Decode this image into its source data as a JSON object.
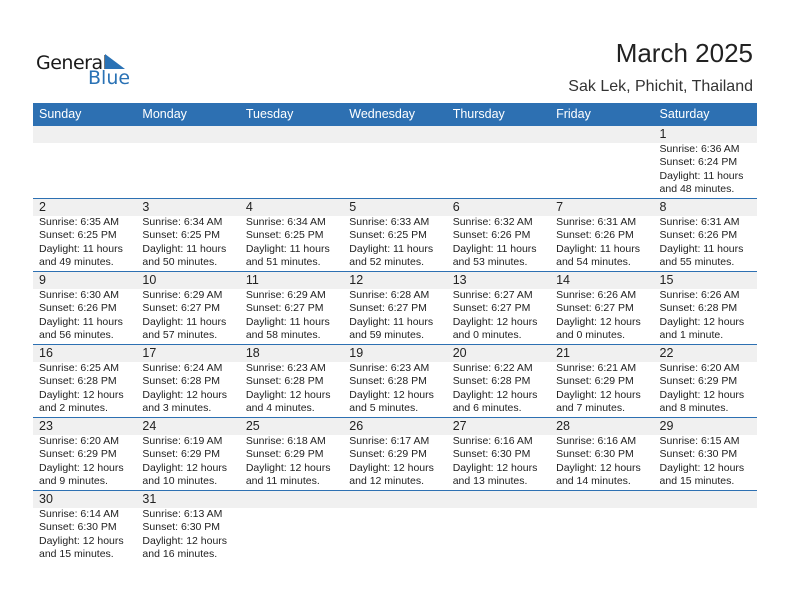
{
  "logo": {
    "line1": "General",
    "line2": "Blue"
  },
  "title": "March 2025",
  "location": "Sak Lek, Phichit, Thailand",
  "colors": {
    "accent": "#2d70b2",
    "band": "#f0f0f0"
  },
  "weekdays": [
    "Sunday",
    "Monday",
    "Tuesday",
    "Wednesday",
    "Thursday",
    "Friday",
    "Saturday"
  ],
  "weeks": [
    [
      null,
      null,
      null,
      null,
      null,
      null,
      {
        "day": "1",
        "sunrise": "Sunrise: 6:36 AM",
        "sunset": "Sunset: 6:24 PM",
        "daylight": "Daylight: 11 hours",
        "minutes": "and 48 minutes."
      }
    ],
    [
      {
        "day": "2",
        "sunrise": "Sunrise: 6:35 AM",
        "sunset": "Sunset: 6:25 PM",
        "daylight": "Daylight: 11 hours",
        "minutes": "and 49 minutes."
      },
      {
        "day": "3",
        "sunrise": "Sunrise: 6:34 AM",
        "sunset": "Sunset: 6:25 PM",
        "daylight": "Daylight: 11 hours",
        "minutes": "and 50 minutes."
      },
      {
        "day": "4",
        "sunrise": "Sunrise: 6:34 AM",
        "sunset": "Sunset: 6:25 PM",
        "daylight": "Daylight: 11 hours",
        "minutes": "and 51 minutes."
      },
      {
        "day": "5",
        "sunrise": "Sunrise: 6:33 AM",
        "sunset": "Sunset: 6:25 PM",
        "daylight": "Daylight: 11 hours",
        "minutes": "and 52 minutes."
      },
      {
        "day": "6",
        "sunrise": "Sunrise: 6:32 AM",
        "sunset": "Sunset: 6:26 PM",
        "daylight": "Daylight: 11 hours",
        "minutes": "and 53 minutes."
      },
      {
        "day": "7",
        "sunrise": "Sunrise: 6:31 AM",
        "sunset": "Sunset: 6:26 PM",
        "daylight": "Daylight: 11 hours",
        "minutes": "and 54 minutes."
      },
      {
        "day": "8",
        "sunrise": "Sunrise: 6:31 AM",
        "sunset": "Sunset: 6:26 PM",
        "daylight": "Daylight: 11 hours",
        "minutes": "and 55 minutes."
      }
    ],
    [
      {
        "day": "9",
        "sunrise": "Sunrise: 6:30 AM",
        "sunset": "Sunset: 6:26 PM",
        "daylight": "Daylight: 11 hours",
        "minutes": "and 56 minutes."
      },
      {
        "day": "10",
        "sunrise": "Sunrise: 6:29 AM",
        "sunset": "Sunset: 6:27 PM",
        "daylight": "Daylight: 11 hours",
        "minutes": "and 57 minutes."
      },
      {
        "day": "11",
        "sunrise": "Sunrise: 6:29 AM",
        "sunset": "Sunset: 6:27 PM",
        "daylight": "Daylight: 11 hours",
        "minutes": "and 58 minutes."
      },
      {
        "day": "12",
        "sunrise": "Sunrise: 6:28 AM",
        "sunset": "Sunset: 6:27 PM",
        "daylight": "Daylight: 11 hours",
        "minutes": "and 59 minutes."
      },
      {
        "day": "13",
        "sunrise": "Sunrise: 6:27 AM",
        "sunset": "Sunset: 6:27 PM",
        "daylight": "Daylight: 12 hours",
        "minutes": "and 0 minutes."
      },
      {
        "day": "14",
        "sunrise": "Sunrise: 6:26 AM",
        "sunset": "Sunset: 6:27 PM",
        "daylight": "Daylight: 12 hours",
        "minutes": "and 0 minutes."
      },
      {
        "day": "15",
        "sunrise": "Sunrise: 6:26 AM",
        "sunset": "Sunset: 6:28 PM",
        "daylight": "Daylight: 12 hours",
        "minutes": "and 1 minute."
      }
    ],
    [
      {
        "day": "16",
        "sunrise": "Sunrise: 6:25 AM",
        "sunset": "Sunset: 6:28 PM",
        "daylight": "Daylight: 12 hours",
        "minutes": "and 2 minutes."
      },
      {
        "day": "17",
        "sunrise": "Sunrise: 6:24 AM",
        "sunset": "Sunset: 6:28 PM",
        "daylight": "Daylight: 12 hours",
        "minutes": "and 3 minutes."
      },
      {
        "day": "18",
        "sunrise": "Sunrise: 6:23 AM",
        "sunset": "Sunset: 6:28 PM",
        "daylight": "Daylight: 12 hours",
        "minutes": "and 4 minutes."
      },
      {
        "day": "19",
        "sunrise": "Sunrise: 6:23 AM",
        "sunset": "Sunset: 6:28 PM",
        "daylight": "Daylight: 12 hours",
        "minutes": "and 5 minutes."
      },
      {
        "day": "20",
        "sunrise": "Sunrise: 6:22 AM",
        "sunset": "Sunset: 6:28 PM",
        "daylight": "Daylight: 12 hours",
        "minutes": "and 6 minutes."
      },
      {
        "day": "21",
        "sunrise": "Sunrise: 6:21 AM",
        "sunset": "Sunset: 6:29 PM",
        "daylight": "Daylight: 12 hours",
        "minutes": "and 7 minutes."
      },
      {
        "day": "22",
        "sunrise": "Sunrise: 6:20 AM",
        "sunset": "Sunset: 6:29 PM",
        "daylight": "Daylight: 12 hours",
        "minutes": "and 8 minutes."
      }
    ],
    [
      {
        "day": "23",
        "sunrise": "Sunrise: 6:20 AM",
        "sunset": "Sunset: 6:29 PM",
        "daylight": "Daylight: 12 hours",
        "minutes": "and 9 minutes."
      },
      {
        "day": "24",
        "sunrise": "Sunrise: 6:19 AM",
        "sunset": "Sunset: 6:29 PM",
        "daylight": "Daylight: 12 hours",
        "minutes": "and 10 minutes."
      },
      {
        "day": "25",
        "sunrise": "Sunrise: 6:18 AM",
        "sunset": "Sunset: 6:29 PM",
        "daylight": "Daylight: 12 hours",
        "minutes": "and 11 minutes."
      },
      {
        "day": "26",
        "sunrise": "Sunrise: 6:17 AM",
        "sunset": "Sunset: 6:29 PM",
        "daylight": "Daylight: 12 hours",
        "minutes": "and 12 minutes."
      },
      {
        "day": "27",
        "sunrise": "Sunrise: 6:16 AM",
        "sunset": "Sunset: 6:30 PM",
        "daylight": "Daylight: 12 hours",
        "minutes": "and 13 minutes."
      },
      {
        "day": "28",
        "sunrise": "Sunrise: 6:16 AM",
        "sunset": "Sunset: 6:30 PM",
        "daylight": "Daylight: 12 hours",
        "minutes": "and 14 minutes."
      },
      {
        "day": "29",
        "sunrise": "Sunrise: 6:15 AM",
        "sunset": "Sunset: 6:30 PM",
        "daylight": "Daylight: 12 hours",
        "minutes": "and 15 minutes."
      }
    ],
    [
      {
        "day": "30",
        "sunrise": "Sunrise: 6:14 AM",
        "sunset": "Sunset: 6:30 PM",
        "daylight": "Daylight: 12 hours",
        "minutes": "and 15 minutes."
      },
      {
        "day": "31",
        "sunrise": "Sunrise: 6:13 AM",
        "sunset": "Sunset: 6:30 PM",
        "daylight": "Daylight: 12 hours",
        "minutes": "and 16 minutes."
      },
      null,
      null,
      null,
      null,
      null
    ]
  ]
}
